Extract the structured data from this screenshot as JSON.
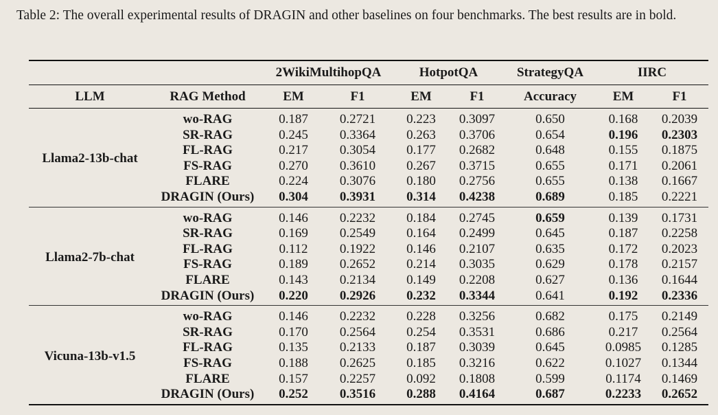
{
  "caption": "Table 2: The overall experimental results of DRAGIN and other baselines on four benchmarks. The best results are in bold.",
  "header": {
    "datasets": [
      {
        "name": "2WikiMultihopQA",
        "span": 2
      },
      {
        "name": "HotpotQA",
        "span": 2
      },
      {
        "name": "StrategyQA",
        "span": 1
      },
      {
        "name": "IIRC",
        "span": 2
      }
    ],
    "columns": [
      "LLM",
      "RAG Method",
      "EM",
      "F1",
      "EM",
      "F1",
      "Accuracy",
      "EM",
      "F1"
    ]
  },
  "groups": [
    {
      "llm": "Llama2-13b-chat",
      "rows": [
        {
          "method": "wo-RAG",
          "values": [
            "0.187",
            "0.2721",
            "0.223",
            "0.3097",
            "0.650",
            "0.168",
            "0.2039"
          ],
          "bold": []
        },
        {
          "method": "SR-RAG",
          "values": [
            "0.245",
            "0.3364",
            "0.263",
            "0.3706",
            "0.654",
            "0.196",
            "0.2303"
          ],
          "bold": [
            5,
            6
          ]
        },
        {
          "method": "FL-RAG",
          "values": [
            "0.217",
            "0.3054",
            "0.177",
            "0.2682",
            "0.648",
            "0.155",
            "0.1875"
          ],
          "bold": []
        },
        {
          "method": "FS-RAG",
          "values": [
            "0.270",
            "0.3610",
            "0.267",
            "0.3715",
            "0.655",
            "0.171",
            "0.2061"
          ],
          "bold": []
        },
        {
          "method": "FLARE",
          "values": [
            "0.224",
            "0.3076",
            "0.180",
            "0.2756",
            "0.655",
            "0.138",
            "0.1667"
          ],
          "bold": []
        },
        {
          "method": "DRAGIN (Ours)",
          "values": [
            "0.304",
            "0.3931",
            "0.314",
            "0.4238",
            "0.689",
            "0.185",
            "0.2221"
          ],
          "bold": [
            0,
            1,
            2,
            3,
            4
          ]
        }
      ]
    },
    {
      "llm": "Llama2-7b-chat",
      "rows": [
        {
          "method": "wo-RAG",
          "values": [
            "0.146",
            "0.2232",
            "0.184",
            "0.2745",
            "0.659",
            "0.139",
            "0.1731"
          ],
          "bold": [
            4
          ]
        },
        {
          "method": "SR-RAG",
          "values": [
            "0.169",
            "0.2549",
            "0.164",
            "0.2499",
            "0.645",
            "0.187",
            "0.2258"
          ],
          "bold": []
        },
        {
          "method": "FL-RAG",
          "values": [
            "0.112",
            "0.1922",
            "0.146",
            "0.2107",
            "0.635",
            "0.172",
            "0.2023"
          ],
          "bold": []
        },
        {
          "method": "FS-RAG",
          "values": [
            "0.189",
            "0.2652",
            "0.214",
            "0.3035",
            "0.629",
            "0.178",
            "0.2157"
          ],
          "bold": []
        },
        {
          "method": "FLARE",
          "values": [
            "0.143",
            "0.2134",
            "0.149",
            "0.2208",
            "0.627",
            "0.136",
            "0.1644"
          ],
          "bold": []
        },
        {
          "method": "DRAGIN (Ours)",
          "values": [
            "0.220",
            "0.2926",
            "0.232",
            "0.3344",
            "0.641",
            "0.192",
            "0.2336"
          ],
          "bold": [
            0,
            1,
            2,
            3,
            5,
            6
          ]
        }
      ]
    },
    {
      "llm": "Vicuna-13b-v1.5",
      "rows": [
        {
          "method": "wo-RAG",
          "values": [
            "0.146",
            "0.2232",
            "0.228",
            "0.3256",
            "0.682",
            "0.175",
            "0.2149"
          ],
          "bold": []
        },
        {
          "method": "SR-RAG",
          "values": [
            "0.170",
            "0.2564",
            "0.254",
            "0.3531",
            "0.686",
            "0.217",
            "0.2564"
          ],
          "bold": []
        },
        {
          "method": "FL-RAG",
          "values": [
            "0.135",
            "0.2133",
            "0.187",
            "0.3039",
            "0.645",
            "0.0985",
            "0.1285"
          ],
          "bold": []
        },
        {
          "method": "FS-RAG",
          "values": [
            "0.188",
            "0.2625",
            "0.185",
            "0.3216",
            "0.622",
            "0.1027",
            "0.1344"
          ],
          "bold": []
        },
        {
          "method": "FLARE",
          "values": [
            "0.157",
            "0.2257",
            "0.092",
            "0.1808",
            "0.599",
            "0.1174",
            "0.1469"
          ],
          "bold": []
        },
        {
          "method": "DRAGIN (Ours)",
          "values": [
            "0.252",
            "0.3516",
            "0.288",
            "0.4164",
            "0.687",
            "0.2233",
            "0.2652"
          ],
          "bold": [
            0,
            1,
            2,
            3,
            4,
            5,
            6
          ]
        }
      ]
    }
  ]
}
